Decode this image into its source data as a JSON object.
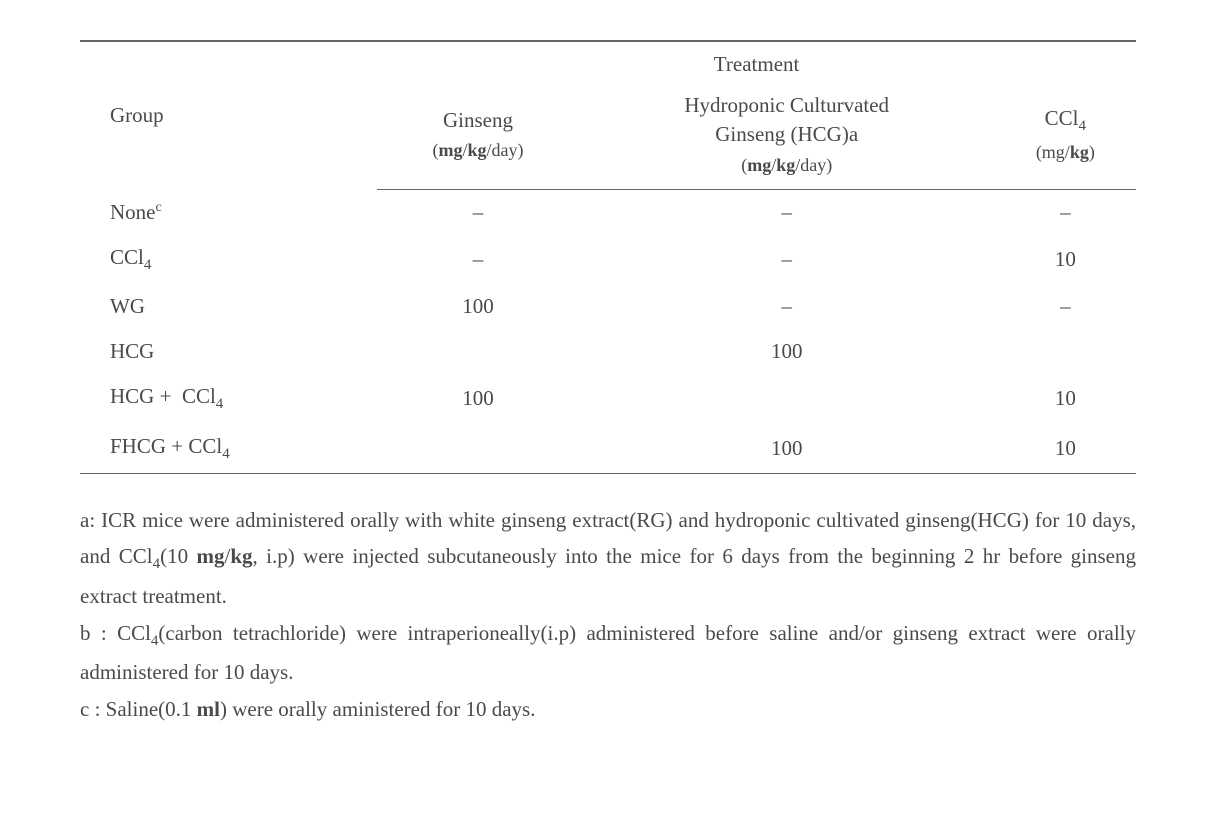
{
  "table": {
    "header": {
      "group_label": "Group",
      "treatment_label": "Treatment",
      "col_ginseng": "Ginseng",
      "col_ginseng_unit_prefix": "(",
      "col_ginseng_unit_mg": "mg",
      "col_ginseng_unit_mid": "/",
      "col_ginseng_unit_kg": "kg",
      "col_ginseng_unit_suffix": "/day)",
      "col_hcg_line1": "Hydroponic Culturvated",
      "col_hcg_line2": "Ginseng (HCG)a",
      "col_hcg_unit_prefix": "(",
      "col_hcg_unit_mg": "mg",
      "col_hcg_unit_mid": "/",
      "col_hcg_unit_kg": "kg",
      "col_hcg_unit_suffix": "/day)",
      "col_ccl4": "CCl",
      "col_ccl4_sub": "4",
      "col_ccl4_unit_prefix": "(mg/",
      "col_ccl4_unit_kg": "kg",
      "col_ccl4_unit_suffix": ")"
    },
    "rows": [
      {
        "group": "None",
        "group_sup": "c",
        "ginseng": "–",
        "hcg": "–",
        "ccl4": "–"
      },
      {
        "group": "CCl",
        "group_sub": "4",
        "ginseng": "–",
        "hcg": "–",
        "ccl4": "10"
      },
      {
        "group": "WG",
        "ginseng": "100",
        "hcg": "–",
        "ccl4": "–"
      },
      {
        "group": "HCG",
        "ginseng": "",
        "hcg": "100",
        "ccl4": ""
      },
      {
        "group": "HCG + ",
        "group_extra": "CCl",
        "group_extra_sub": "4",
        "ginseng": "100",
        "hcg": "",
        "ccl4": "10"
      },
      {
        "group": "FHCG + CCl",
        "group_sub": "4",
        "ginseng": "",
        "hcg": "100",
        "ccl4": "10"
      }
    ]
  },
  "notes": {
    "a_prefix": "a: ICR mice were administered orally with white ginseng extract(RG) and hydroponic cultivated ginseng(HCG) for 10 days, and  CCl",
    "a_sub": "4",
    "a_mid": "(10 ",
    "a_mg": "mg",
    "a_slash": "/",
    "a_kg": "kg",
    "a_suffix": ", i.p) were injected subcutaneously into the mice for 6 days from the beginning 2 hr before ginseng extract treatment.",
    "b_prefix": "b :  CCl",
    "b_sub": "4",
    "b_suffix": "(carbon tetrachloride) were intraperioneally(i.p) administered before saline and/or ginseng extract were orally administered for 10 days.",
    "c_prefix": "c : Saline(0.1 ",
    "c_ml": "ml",
    "c_suffix": ") were orally aministered for 10 days."
  }
}
